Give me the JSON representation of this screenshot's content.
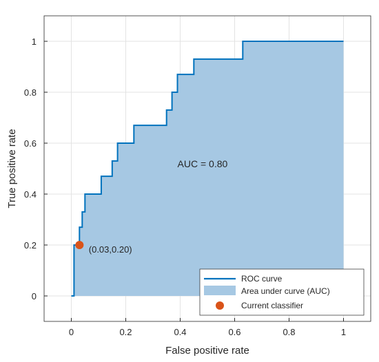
{
  "chart_data": {
    "type": "area",
    "title": "",
    "xlabel": "False positive rate",
    "ylabel": "True positive rate",
    "xlim": [
      -0.1,
      1.1
    ],
    "ylim": [
      -0.1,
      1.1
    ],
    "grid": true,
    "xticks": [
      0,
      0.2,
      0.4,
      0.6,
      0.8,
      1
    ],
    "xtick_labels": [
      "0",
      "0.2",
      "0.4",
      "0.6",
      "0.8",
      "1"
    ],
    "yticks": [
      0,
      0.2,
      0.4,
      0.6,
      0.8,
      1
    ],
    "ytick_labels": [
      "0",
      "0.2",
      "0.4",
      "0.6",
      "0.8",
      "1"
    ],
    "series": [
      {
        "name": "ROC curve",
        "kind": "line",
        "color": "#0072bd",
        "x": [
          0,
          0.01,
          0.01,
          0.03,
          0.03,
          0.04,
          0.04,
          0.05,
          0.05,
          0.11,
          0.11,
          0.15,
          0.15,
          0.17,
          0.17,
          0.23,
          0.23,
          0.35,
          0.35,
          0.37,
          0.37,
          0.39,
          0.39,
          0.45,
          0.45,
          0.63,
          0.63,
          1.0
        ],
        "y": [
          0,
          0,
          0.2,
          0.2,
          0.27,
          0.27,
          0.33,
          0.33,
          0.4,
          0.4,
          0.47,
          0.47,
          0.53,
          0.53,
          0.6,
          0.6,
          0.67,
          0.67,
          0.73,
          0.73,
          0.8,
          0.8,
          0.87,
          0.87,
          0.93,
          0.93,
          1.0,
          1.0
        ]
      },
      {
        "name": "Area under curve (AUC)",
        "kind": "area",
        "color": "#a6c8e3"
      },
      {
        "name": "Current classifier",
        "kind": "scatter",
        "color": "#d95319",
        "x": [
          0.03
        ],
        "y": [
          0.2
        ]
      }
    ],
    "annotations": [
      {
        "text": "AUC = 0.80",
        "x": 0.39,
        "y": 0.505
      },
      {
        "text": "(0.03,0.20)",
        "x": 0.064,
        "y": 0.17
      }
    ],
    "legend": {
      "placement": "bottom-right",
      "entries": [
        "ROC curve",
        "Area under curve (AUC)",
        "Current classifier"
      ]
    }
  }
}
